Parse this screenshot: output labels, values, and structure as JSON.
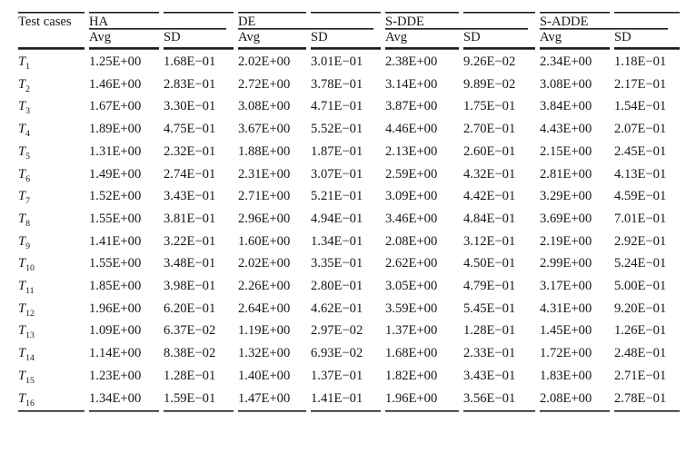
{
  "table": {
    "corner_label": "Test cases",
    "subheaders": [
      "Avg",
      "SD"
    ],
    "groups": [
      {
        "label": "HA"
      },
      {
        "label": "DE"
      },
      {
        "label": "S-DDE"
      },
      {
        "label": "S-ADDE"
      }
    ],
    "text_color": "#161616",
    "rule_color": "#1b1b1b",
    "rows": [
      {
        "case": "T",
        "index": "1",
        "values": [
          "1.25E+00",
          "1.68E−01",
          "2.02E+00",
          "3.01E−01",
          "2.38E+00",
          "9.26E−02",
          "2.34E+00",
          "1.18E−01"
        ],
        "bold": [
          4,
          5
        ]
      },
      {
        "case": "T",
        "index": "2",
        "values": [
          "1.46E+00",
          "2.83E−01",
          "2.72E+00",
          "3.78E−01",
          "3.14E+00",
          "9.89E−02",
          "3.08E+00",
          "2.17E−01"
        ],
        "bold": [
          4,
          5
        ]
      },
      {
        "case": "T",
        "index": "3",
        "values": [
          "1.67E+00",
          "3.30E−01",
          "3.08E+00",
          "4.71E−01",
          "3.87E+00",
          "1.75E−01",
          "3.84E+00",
          "1.54E−01"
        ],
        "bold": [
          4,
          5
        ]
      },
      {
        "case": "T",
        "index": "4",
        "values": [
          "1.89E+00",
          "4.75E−01",
          "3.67E+00",
          "5.52E−01",
          "4.46E+00",
          "2.70E−01",
          "4.43E+00",
          "2.07E−01"
        ],
        "bold": [
          4,
          5
        ]
      },
      {
        "case": "T",
        "index": "5",
        "values": [
          "1.31E+00",
          "2.32E−01",
          "1.88E+00",
          "1.87E−01",
          "2.13E+00",
          "2.60E−01",
          "2.15E+00",
          "2.45E−01"
        ],
        "bold": [
          6,
          7
        ]
      },
      {
        "case": "T",
        "index": "6",
        "values": [
          "1.49E+00",
          "2.74E−01",
          "2.31E+00",
          "3.07E−01",
          "2.59E+00",
          "4.32E−01",
          "2.81E+00",
          "4.13E−01"
        ],
        "bold": [
          6,
          7
        ]
      },
      {
        "case": "T",
        "index": "7",
        "values": [
          "1.52E+00",
          "3.43E−01",
          "2.71E+00",
          "5.21E−01",
          "3.09E+00",
          "4.42E−01",
          "3.29E+00",
          "4.59E−01"
        ],
        "bold": [
          6,
          7
        ]
      },
      {
        "case": "T",
        "index": "8",
        "values": [
          "1.55E+00",
          "3.81E−01",
          "2.96E+00",
          "4.94E−01",
          "3.46E+00",
          "4.84E−01",
          "3.69E+00",
          "7.01E−01"
        ],
        "bold": [
          6,
          7
        ]
      },
      {
        "case": "T",
        "index": "9",
        "values": [
          "1.41E+00",
          "3.22E−01",
          "1.60E+00",
          "1.34E−01",
          "2.08E+00",
          "3.12E−01",
          "2.19E+00",
          "2.92E−01"
        ],
        "bold": [
          6,
          7
        ]
      },
      {
        "case": "T",
        "index": "10",
        "values": [
          "1.55E+00",
          "3.48E−01",
          "2.02E+00",
          "3.35E−01",
          "2.62E+00",
          "4.50E−01",
          "2.99E+00",
          "5.24E−01"
        ],
        "bold": [
          6,
          7
        ]
      },
      {
        "case": "T",
        "index": "11",
        "values": [
          "1.85E+00",
          "3.98E−01",
          "2.26E+00",
          "2.80E−01",
          "3.05E+00",
          "4.79E−01",
          "3.17E+00",
          "5.00E−01"
        ],
        "bold": [
          6,
          7
        ]
      },
      {
        "case": "T",
        "index": "12",
        "values": [
          "1.96E+00",
          "6.20E−01",
          "2.64E+00",
          "4.62E−01",
          "3.59E+00",
          "5.45E−01",
          "4.31E+00",
          "9.20E−01"
        ],
        "bold": [
          6,
          7
        ]
      },
      {
        "case": "T",
        "index": "13",
        "values": [
          "1.09E+00",
          "6.37E−02",
          "1.19E+00",
          "2.97E−02",
          "1.37E+00",
          "1.28E−01",
          "1.45E+00",
          "1.26E−01"
        ],
        "bold": [
          6,
          7
        ]
      },
      {
        "case": "T",
        "index": "14",
        "values": [
          "1.14E+00",
          "8.38E−02",
          "1.32E+00",
          "6.93E−02",
          "1.68E+00",
          "2.33E−01",
          "1.72E+00",
          "2.48E−01"
        ],
        "bold": [
          6,
          7
        ]
      },
      {
        "case": "T",
        "index": "15",
        "values": [
          "1.23E+00",
          "1.28E−01",
          "1.40E+00",
          "1.37E−01",
          "1.82E+00",
          "3.43E−01",
          "1.83E+00",
          "2.71E−01"
        ],
        "bold": [
          6,
          7
        ]
      },
      {
        "case": "T",
        "index": "16",
        "values": [
          "1.34E+00",
          "1.59E−01",
          "1.47E+00",
          "1.41E−01",
          "1.96E+00",
          "3.56E−01",
          "2.08E+00",
          "2.78E−01"
        ],
        "bold": [
          6,
          7
        ]
      }
    ]
  }
}
